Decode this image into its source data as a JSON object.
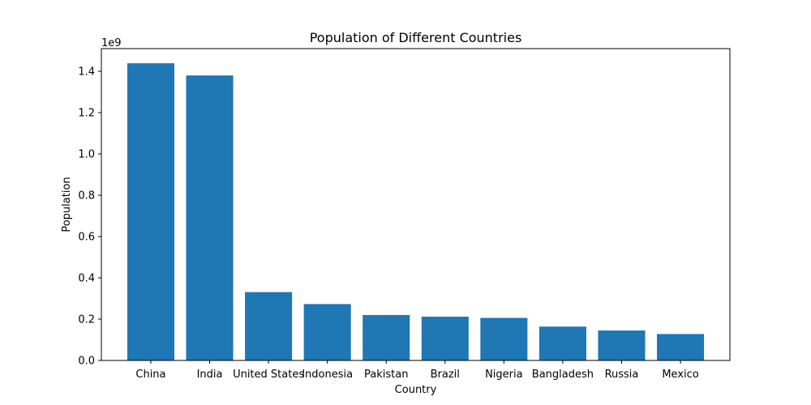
{
  "chart_data": {
    "type": "bar",
    "title": "Population of Different Countries",
    "xlabel": "Country",
    "ylabel": "Population",
    "y_offset_label": "1e9",
    "y_scale": 1000000000,
    "categories": [
      "China",
      "India",
      "United States",
      "Indonesia",
      "Pakistan",
      "Brazil",
      "Nigeria",
      "Bangladesh",
      "Russia",
      "Mexico"
    ],
    "values": [
      1439000000,
      1380000000,
      331000000,
      273000000,
      220000000,
      212000000,
      206000000,
      164000000,
      145000000,
      128000000
    ],
    "ylim": [
      0,
      1510000000
    ],
    "yticks": [
      0.0,
      0.2,
      0.4,
      0.6,
      0.8,
      1.0,
      1.2,
      1.4
    ],
    "ytick_labels": [
      "0.0",
      "0.2",
      "0.4",
      "0.6",
      "0.8",
      "1.0",
      "1.2",
      "1.4"
    ],
    "bar_color": "#1f77b4",
    "grid": false,
    "legend": "none"
  }
}
